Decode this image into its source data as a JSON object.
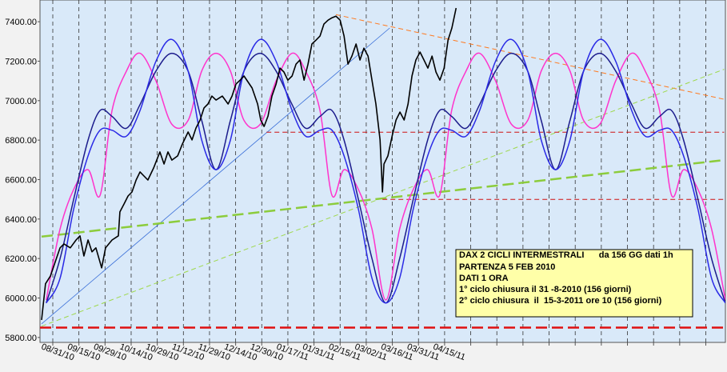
{
  "chart_data": {
    "type": "line",
    "xlim": [
      -0.49,
      25.75
    ],
    "ylim": [
      5775,
      7510
    ],
    "yticks": [
      {
        "value": 5800,
        "label": "5800.00"
      },
      {
        "value": 6000,
        "label": "6000.00"
      },
      {
        "value": 6200,
        "label": "6200.00"
      },
      {
        "value": 6400,
        "label": "6400.00"
      },
      {
        "value": 6600,
        "label": "6600.00"
      },
      {
        "value": 6800,
        "label": "6800.00"
      },
      {
        "value": 7000,
        "label": "7000.00"
      },
      {
        "value": 7200,
        "label": "7200.00"
      },
      {
        "value": 7400,
        "label": "7400.00"
      }
    ],
    "xticks": [
      {
        "value": 0,
        "label": "08/31/10"
      },
      {
        "value": 1,
        "label": "09/15/10"
      },
      {
        "value": 2,
        "label": "09/29/10"
      },
      {
        "value": 3,
        "label": "10/14/10"
      },
      {
        "value": 4,
        "label": "10/29/10"
      },
      {
        "value": 5,
        "label": "11/12/10"
      },
      {
        "value": 6,
        "label": "11/29/10"
      },
      {
        "value": 7,
        "label": "12/14/10"
      },
      {
        "value": 8,
        "label": "12/30/10"
      },
      {
        "value": 9,
        "label": "01/17/11"
      },
      {
        "value": 10,
        "label": "01/31/11"
      },
      {
        "value": 11,
        "label": "02/15/11"
      },
      {
        "value": 12,
        "label": "03/02/11"
      },
      {
        "value": 13,
        "label": "03/16/11"
      },
      {
        "value": 14,
        "label": "03/31/11"
      },
      {
        "value": 15,
        "label": "04/15/11"
      },
      {
        "value": 16,
        "label": null
      },
      {
        "value": 17,
        "label": null
      },
      {
        "value": 18,
        "label": null
      },
      {
        "value": 19,
        "label": null
      },
      {
        "value": 20,
        "label": null
      },
      {
        "value": 21,
        "label": null
      },
      {
        "value": 22,
        "label": null
      },
      {
        "value": 23,
        "label": null
      },
      {
        "value": 24,
        "label": null
      },
      {
        "value": 25,
        "label": null
      }
    ],
    "grid": true,
    "annotations": [
      "DAX 2 CICLI INTERMESTRALI      da 156 GG dati 1h",
      "PARTENZA 5 FEB 2010",
      "DATI 1 ORA",
      "1° ciclo chiusura il 31 -8-2010  (156 giorni)",
      "2° ciclo chiusura  il  15-3-2011 ore 10 (156 giorni)"
    ],
    "lines": [
      {
        "x": [
          -0.43,
          12.9
        ],
        "values": [
          5869,
          7368
        ],
        "color": "#3a6fd8",
        "line_style": "solid",
        "line_width": 0.8
      },
      {
        "x": [
          10.84,
          25.7
        ],
        "values": [
          7436,
          7007
        ],
        "color": "#ff7a20",
        "line_style": "dashed",
        "line_width": 1
      },
      {
        "x": [
          -0.43,
          25.7
        ],
        "values": [
          5857,
          7159
        ],
        "color": "#9ed84a",
        "line_style": "dashed",
        "line_width": 1
      },
      {
        "x": [
          -0.43,
          25.7
        ],
        "values": [
          6311,
          6699
        ],
        "color": "#8ccc3c",
        "line_style": "longdash",
        "line_width": 2.5
      },
      {
        "x": [
          8.18,
          25.7
        ],
        "values": [
          6840,
          6840
        ],
        "color": "#d01010",
        "line_style": "dashed",
        "line_width": 1
      },
      {
        "x": [
          12.62,
          25.7
        ],
        "values": [
          6500,
          6500
        ],
        "color": "#d01010",
        "line_style": "dashed",
        "line_width": 1
      },
      {
        "x": [
          -0.49,
          25.75
        ],
        "values": [
          5850,
          5850
        ],
        "color": "#e01010",
        "line_style": "longdash",
        "line_width": 2.5
      }
    ],
    "series": [
      {
        "color": "#ff33cc",
        "smooth": true,
        "line_width": 1.5,
        "x": [
          -0.25,
          0.28,
          0.8,
          1.35,
          1.81,
          2.27,
          2.82,
          3.34,
          3.95,
          4.56,
          5.18,
          5.7,
          6.25,
          6.8,
          7.32,
          7.94,
          8.55,
          9.16,
          9.68,
          10.23,
          10.69,
          11.15,
          11.7,
          12.22,
          12.75,
          13.28,
          13.8,
          14.35,
          14.81,
          15.27,
          15.82,
          16.34,
          16.95,
          17.56,
          18.18,
          18.7,
          19.25,
          19.8,
          20.32,
          20.94,
          21.55,
          22.16,
          22.68,
          23.23,
          23.69,
          24.15,
          24.7,
          25.22,
          25.75
        ],
        "values": [
          5990,
          6350,
          6550,
          6650,
          6520,
          6950,
          7150,
          7240,
          7100,
          6880,
          6900,
          7150,
          7240,
          7150,
          6900,
          6880,
          7100,
          7240,
          7150,
          6950,
          6520,
          6650,
          6550,
          6350,
          5990,
          6350,
          6550,
          6650,
          6520,
          6950,
          7150,
          7240,
          7100,
          6880,
          6900,
          7150,
          7240,
          7150,
          6900,
          6880,
          7100,
          7240,
          7150,
          6950,
          6520,
          6650,
          6550,
          6350,
          5990
        ]
      },
      {
        "color": "#1c1c8c",
        "smooth": true,
        "line_width": 1.5,
        "x": [
          -0.25,
          0.28,
          0.8,
          1.35,
          1.81,
          2.27,
          2.82,
          3.34,
          3.95,
          4.56,
          5.18,
          5.7,
          6.25,
          6.8,
          7.32,
          7.94,
          8.55,
          9.16,
          9.68,
          10.23,
          10.69,
          11.15,
          11.7,
          12.22,
          12.75,
          13.28,
          13.8,
          14.35,
          14.81,
          15.27,
          15.82,
          16.34,
          16.95,
          17.56,
          18.18,
          18.7,
          19.25,
          19.8,
          20.32,
          20.94,
          21.55,
          22.16,
          22.68,
          23.23,
          23.69,
          24.15,
          24.7,
          25.22,
          25.75
        ],
        "values": [
          5975,
          6200,
          6500,
          6800,
          6950,
          6920,
          6860,
          6980,
          7150,
          7240,
          7150,
          6900,
          6650,
          6900,
          7150,
          7240,
          7150,
          6980,
          6860,
          6920,
          6950,
          6800,
          6500,
          6200,
          5975,
          6200,
          6500,
          6800,
          6950,
          6920,
          6860,
          6980,
          7150,
          7240,
          7150,
          6900,
          6650,
          6900,
          7150,
          7240,
          7150,
          6980,
          6860,
          6920,
          6950,
          6800,
          6500,
          6200,
          5975
        ]
      },
      {
        "color": "#2a2ae6",
        "smooth": true,
        "line_width": 1.5,
        "x": [
          -0.25,
          0.28,
          0.8,
          1.35,
          1.81,
          2.27,
          2.82,
          3.34,
          3.95,
          4.56,
          5.18,
          5.7,
          6.25,
          6.8,
          7.32,
          7.94,
          8.55,
          9.16,
          9.68,
          10.23,
          10.69,
          11.15,
          11.7,
          12.22,
          12.75,
          13.28,
          13.8,
          14.35,
          14.81,
          15.27,
          15.82,
          16.34,
          16.95,
          17.56,
          18.18,
          18.7,
          19.25,
          19.8,
          20.32,
          20.94,
          21.55,
          22.16,
          22.68,
          23.23,
          23.69,
          24.15,
          24.7,
          25.22,
          25.75
        ],
        "values": [
          5975,
          6100,
          6450,
          6720,
          6850,
          6850,
          6820,
          6950,
          7200,
          7310,
          7150,
          6800,
          6650,
          6800,
          7150,
          7310,
          7200,
          6950,
          6820,
          6850,
          6850,
          6720,
          6450,
          6100,
          5975,
          6100,
          6450,
          6720,
          6850,
          6850,
          6820,
          6950,
          7200,
          7310,
          7150,
          6800,
          6650,
          6800,
          7150,
          7310,
          7200,
          6950,
          6820,
          6850,
          6850,
          6720,
          6450,
          6100,
          5975
        ]
      },
      {
        "color": "#000000",
        "smooth": false,
        "line_width": 1.6,
        "x": [
          -0.43,
          -0.28,
          -0.09,
          0.12,
          0.28,
          0.43,
          0.67,
          0.89,
          1.04,
          1.19,
          1.35,
          1.5,
          1.65,
          1.87,
          2.02,
          2.27,
          2.51,
          2.57,
          2.73,
          2.88,
          3.03,
          3.19,
          3.34,
          3.49,
          3.64,
          3.86,
          4.1,
          4.26,
          4.41,
          4.56,
          4.78,
          4.96,
          5.18,
          5.33,
          5.48,
          5.64,
          5.79,
          5.94,
          6.09,
          6.25,
          6.49,
          6.71,
          6.86,
          7.01,
          7.17,
          7.32,
          7.63,
          7.84,
          7.96,
          8.09,
          8.24,
          8.39,
          8.55,
          8.7,
          8.85,
          9.0,
          9.16,
          9.31,
          9.46,
          9.62,
          9.77,
          9.92,
          10.08,
          10.23,
          10.38,
          10.54,
          10.69,
          10.84,
          11.0,
          11.15,
          11.3,
          11.45,
          11.61,
          11.76,
          11.91,
          12.07,
          12.22,
          12.37,
          12.53,
          12.62,
          12.68,
          12.83,
          12.99,
          13.14,
          13.29,
          13.45,
          13.6,
          13.75,
          13.9,
          14.06,
          14.21,
          14.36,
          14.52,
          14.67,
          14.82,
          14.98,
          15.13,
          15.28,
          15.44
        ],
        "values": [
          5889,
          6072,
          6112,
          6193,
          6254,
          6274,
          6254,
          6294,
          6315,
          6213,
          6294,
          6234,
          6254,
          6153,
          6254,
          6294,
          6315,
          6436,
          6477,
          6517,
          6537,
          6598,
          6639,
          6618,
          6598,
          6659,
          6740,
          6679,
          6740,
          6699,
          6720,
          6780,
          6841,
          6801,
          6861,
          6902,
          6963,
          6983,
          7023,
          7003,
          7023,
          6983,
          7023,
          7084,
          7104,
          7125,
          7064,
          6983,
          6902,
          6869,
          6922,
          7023,
          7084,
          7165,
          7145,
          7104,
          7125,
          7185,
          7206,
          7104,
          7185,
          7287,
          7307,
          7327,
          7388,
          7408,
          7420,
          7428,
          7408,
          7327,
          7185,
          7226,
          7287,
          7206,
          7266,
          7226,
          7104,
          6983,
          6801,
          6537,
          6679,
          6720,
          6821,
          6902,
          6942,
          6902,
          6983,
          7125,
          7206,
          7246,
          7206,
          7165,
          7226,
          7145,
          7104,
          7165,
          7307,
          7368,
          7469
        ]
      }
    ]
  }
}
